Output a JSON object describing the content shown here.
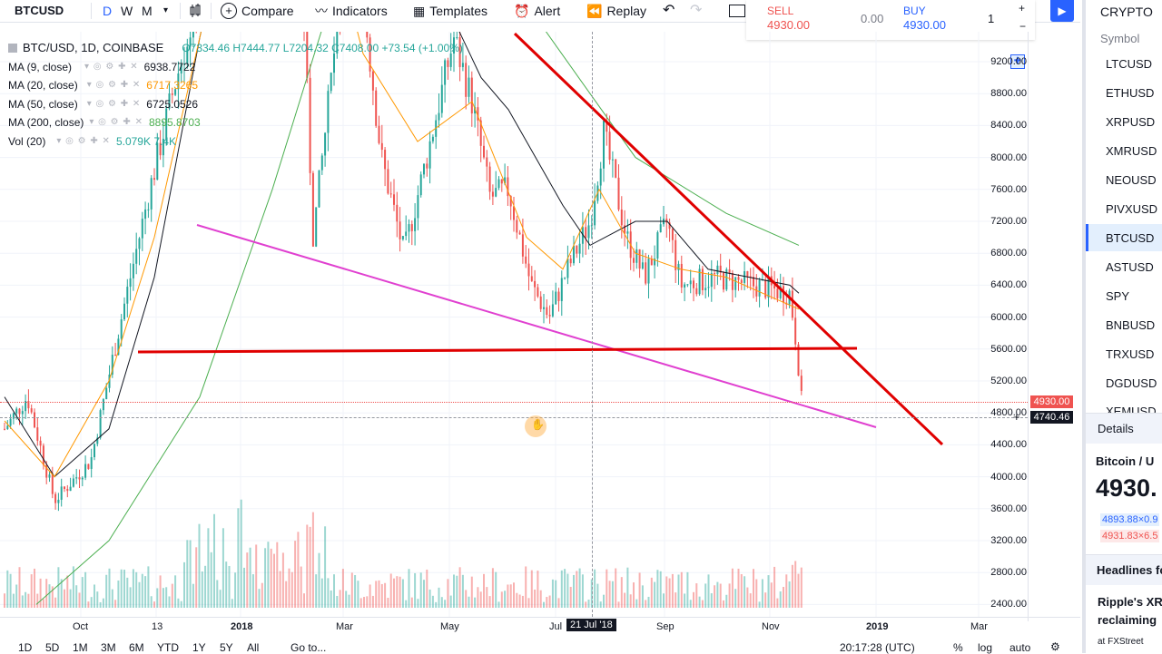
{
  "toolbar": {
    "symbol": "BTCUSD",
    "intervals": [
      "D",
      "W",
      "M"
    ],
    "compare": "Compare",
    "indicators": "Indicators",
    "templates": "Templates",
    "alert": "Alert",
    "replay": "Replay"
  },
  "trade": {
    "sell_label": "SELL",
    "sell_value": "4930.00",
    "spread": "0.00",
    "buy_label": "BUY",
    "buy_value": "4930.00",
    "quantity": "1"
  },
  "legend": {
    "title": "BTC/USD, 1D, COINBASE",
    "ohlc": "O7334.46 H7444.77 L7204.32 C7408.00 +73.54 (+1.00%)",
    "indicators": [
      {
        "name": "MA (9, close)",
        "value": "6938.7722",
        "color": "#131722"
      },
      {
        "name": "MA (20, close)",
        "value": "6717.3265",
        "color": "#ff9800"
      },
      {
        "name": "MA (50, close)",
        "value": "6725.0526",
        "color": "#131722"
      },
      {
        "name": "MA (200, close)",
        "value": "8895.8703",
        "color": "#4caf50"
      },
      {
        "name": "Vol (20)",
        "value": "5.079K 7.4K",
        "color": "#26a69a"
      }
    ]
  },
  "price_axis": [
    "9200.00",
    "8800.00",
    "8400.00",
    "8000.00",
    "7600.00",
    "7200.00",
    "6800.00",
    "6400.00",
    "6000.00",
    "5600.00",
    "5200.00",
    "4800.00",
    "4400.00",
    "4000.00",
    "3600.00",
    "3200.00",
    "2800.00",
    "2400.00"
  ],
  "price_tags": {
    "last": "4930.00",
    "crosshair": "4740.46"
  },
  "time_axis": [
    "Oct",
    "13",
    "2018",
    "Mar",
    "May",
    "Jul",
    "21 Jul '18",
    "Sep",
    "Nov",
    "2019",
    "Mar"
  ],
  "watchlist": {
    "header": "CRYPTO",
    "column": "Symbol",
    "items": [
      "LTCUSD",
      "ETHUSD",
      "XRPUSD",
      "XMRUSD",
      "NEOUSD",
      "PIVXUSD",
      "BTCUSD",
      "ASTUSD",
      "SPY",
      "BNBUSD",
      "TRXUSD",
      "DGDUSD",
      "XEMUSD"
    ],
    "active": "BTCUSD"
  },
  "details": {
    "tab": "Details",
    "name": "Bitcoin / U",
    "price": "4930.",
    "bid": "4893.88×0.9",
    "ask": "4931.83×6.5"
  },
  "headlines": {
    "title": "Headlines fo",
    "item_line1": "Ripple's XR",
    "item_line2": "reclaiming",
    "source": "at FXStreet"
  },
  "bottom": {
    "ranges": [
      "1D",
      "5D",
      "1M",
      "3M",
      "6M",
      "YTD",
      "1Y",
      "5Y",
      "All"
    ],
    "goto": "Go to...",
    "time": "20:17:28 (UTC)",
    "options": [
      "%",
      "log",
      "auto"
    ]
  },
  "colors": {
    "accent": "#2962ff",
    "up": "#26a69a",
    "down": "#ef5350",
    "trend_red": "#e00000",
    "trend_magenta": "#e040d0"
  }
}
